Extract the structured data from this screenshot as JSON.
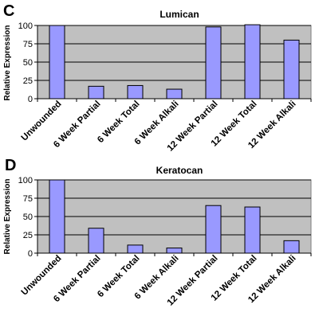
{
  "figure": {
    "colors": {
      "plot_bg": "#c0c0c0",
      "bar_fill": "#9999ff",
      "bar_stroke": "#000000",
      "grid": "#000000"
    }
  },
  "chart_data": [
    {
      "panel": "C",
      "type": "bar",
      "title": "Lumican",
      "xlabel": "",
      "ylabel": "Relative Expression",
      "ylim": [
        0,
        100
      ],
      "yticks": [
        0,
        25,
        50,
        75,
        100
      ],
      "grid": true,
      "categories": [
        "Unwounded",
        "6 Week Partial",
        "6 Week Total",
        "6 Week Alkali",
        "12 Week Partial",
        "12 Week Total",
        "12 Week Alkali"
      ],
      "values": [
        100,
        17,
        18,
        13,
        98,
        101,
        80
      ]
    },
    {
      "panel": "D",
      "type": "bar",
      "title": "Keratocan",
      "xlabel": "",
      "ylabel": "Relative Expression",
      "ylim": [
        0,
        100
      ],
      "yticks": [
        0,
        25,
        50,
        75,
        100
      ],
      "grid": true,
      "categories": [
        "Unwounded",
        "6 Week Partial",
        "6 Week Total",
        "6 Week Alkali",
        "12 Week Partial",
        "12 Week Total",
        "12 Week Alkali"
      ],
      "values": [
        100,
        34,
        11,
        7,
        65,
        63,
        17
      ]
    }
  ]
}
